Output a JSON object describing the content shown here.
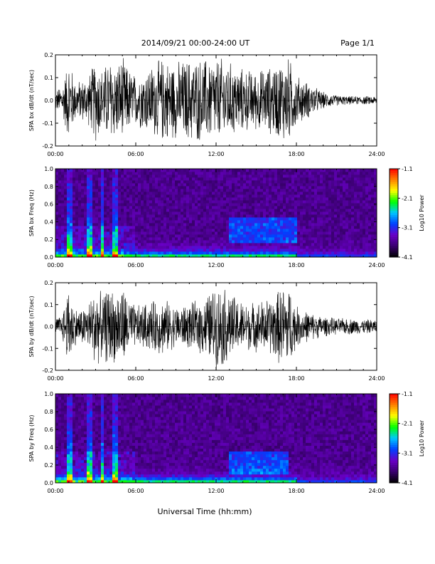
{
  "header": {
    "title": "2014/09/21  00:00-24:00 UT",
    "page": "Page 1/1"
  },
  "footer": {
    "xlabel": "Universal Time (hh:mm)"
  },
  "colors": {
    "trace": "#000000",
    "spectrogram_background": "#1a0a2e",
    "colormap": [
      "#000000",
      "#3a0070",
      "#6a00c8",
      "#0040ff",
      "#00c8ff",
      "#00ff00",
      "#ffff00",
      "#ff8000",
      "#ff0000"
    ]
  },
  "chart_data": [
    {
      "type": "line",
      "name": "bx-timeseries",
      "ylabel": "SPA bx dB/dt (nT/sec)",
      "xlim": [
        0,
        24
      ],
      "ylim": [
        -0.2,
        0.2
      ],
      "x_ticks": [
        "00:00",
        "06:00",
        "12:00",
        "18:00",
        "24:00"
      ],
      "y_ticks": [
        "0.2",
        "0.1",
        "0.0",
        "-0.1",
        "-0.2"
      ],
      "envelope": {
        "x": [
          0,
          0.5,
          1.0,
          1.5,
          2.0,
          2.5,
          3.0,
          3.5,
          4.0,
          4.5,
          5.0,
          5.5,
          6.0,
          7.0,
          8.0,
          9.0,
          10.0,
          11.0,
          12.0,
          12.5,
          13.0,
          14.0,
          15.0,
          16.0,
          17.0,
          17.5,
          18.0,
          19.0,
          20.0,
          21.0,
          22.0,
          23.0,
          24.0
        ],
        "amp": [
          0.05,
          0.07,
          0.2,
          0.09,
          0.1,
          0.12,
          0.2,
          0.15,
          0.2,
          0.18,
          0.2,
          0.15,
          0.12,
          0.16,
          0.2,
          0.18,
          0.2,
          0.2,
          0.2,
          0.2,
          0.18,
          0.15,
          0.14,
          0.16,
          0.2,
          0.2,
          0.12,
          0.08,
          0.04,
          0.025,
          0.02,
          0.02,
          0.02
        ]
      }
    },
    {
      "type": "heatmap",
      "name": "bx-spectrogram",
      "ylabel": "SPA bx Freq (Hz)",
      "colorbar_label": "Log10 Power",
      "xlim": [
        0,
        24
      ],
      "ylim": [
        0,
        1.0
      ],
      "clim": [
        -4.1,
        -1.1
      ],
      "x_ticks": [
        "00:00",
        "06:00",
        "12:00",
        "18:00",
        "24:00"
      ],
      "y_ticks": [
        "1.0",
        "0.8",
        "0.6",
        "0.4",
        "0.2",
        "0.0"
      ],
      "colorbar_ticks": [
        "-1.1",
        "-2.1",
        "-3.1",
        "-4.1"
      ],
      "vertical_bands_hours": [
        1.0,
        2.5,
        3.5,
        4.5
      ],
      "diffuse_enhancement": {
        "x_range": [
          13,
          18
        ],
        "y_range": [
          0.15,
          0.45
        ]
      }
    },
    {
      "type": "line",
      "name": "by-timeseries",
      "ylabel": "SPA by dB/dt (nT/sec)",
      "xlim": [
        0,
        24
      ],
      "ylim": [
        -0.2,
        0.2
      ],
      "x_ticks": [
        "00:00",
        "06:00",
        "12:00",
        "18:00",
        "24:00"
      ],
      "y_ticks": [
        "0.2",
        "0.1",
        "0.0",
        "-0.1",
        "-0.2"
      ],
      "envelope": {
        "x": [
          0,
          0.5,
          1.0,
          1.5,
          2.0,
          2.5,
          3.0,
          3.5,
          4.0,
          4.5,
          5.0,
          5.5,
          6.0,
          7.0,
          8.0,
          9.0,
          10.0,
          11.0,
          12.0,
          12.5,
          13.0,
          14.0,
          15.0,
          16.0,
          17.0,
          17.5,
          18.0,
          19.0,
          20.0,
          21.0,
          22.0,
          23.0,
          24.0
        ],
        "amp": [
          0.04,
          0.06,
          0.2,
          0.09,
          0.09,
          0.12,
          0.2,
          0.15,
          0.2,
          0.17,
          0.2,
          0.14,
          0.1,
          0.12,
          0.14,
          0.1,
          0.11,
          0.14,
          0.2,
          0.2,
          0.17,
          0.12,
          0.12,
          0.14,
          0.2,
          0.2,
          0.1,
          0.07,
          0.05,
          0.04,
          0.04,
          0.035,
          0.035
        ]
      }
    },
    {
      "type": "heatmap",
      "name": "by-spectrogram",
      "ylabel": "SPA by Freq (Hz)",
      "colorbar_label": "Log10 Power",
      "xlim": [
        0,
        24
      ],
      "ylim": [
        0,
        1.0
      ],
      "clim": [
        -4.1,
        -1.1
      ],
      "x_ticks": [
        "00:00",
        "06:00",
        "12:00",
        "18:00",
        "24:00"
      ],
      "y_ticks": [
        "1.0",
        "0.8",
        "0.6",
        "0.4",
        "0.2",
        "0.0"
      ],
      "colorbar_ticks": [
        "-1.1",
        "-2.1",
        "-3.1",
        "-4.1"
      ],
      "vertical_bands_hours": [
        1.0,
        2.5,
        3.5,
        4.5
      ],
      "diffuse_enhancement": {
        "x_range": [
          13,
          17.5
        ],
        "y_range": [
          0.1,
          0.35
        ]
      }
    }
  ]
}
